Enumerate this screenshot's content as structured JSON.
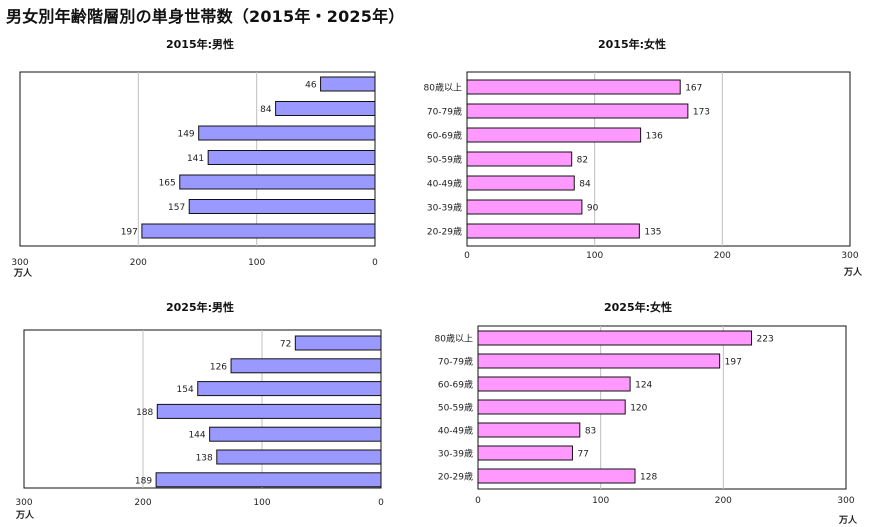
{
  "page_title": "男女別年齢階層別の単身世帯数（2015年・2025年）",
  "unit": "万人",
  "colors": {
    "male_bar": "#9999ff",
    "female_bar": "#ff99ff",
    "bar_stroke": "#111111",
    "grid": "#c0c0c0",
    "frame": "#111111"
  },
  "chart_data": [
    {
      "type": "bar",
      "orientation": "horizontal",
      "direction": "right-to-left",
      "title": "2015年:男性",
      "categories": [
        "80歳以上",
        "70-79歳",
        "60-69歳",
        "50-59歳",
        "40-49歳",
        "30-39歳",
        "20-29歳"
      ],
      "values": [
        46,
        84,
        149,
        141,
        165,
        157,
        197
      ],
      "xlim": [
        0,
        300
      ],
      "xticks": [
        "300",
        "200",
        "100",
        "0"
      ],
      "xlabel": "万人",
      "category_labels_shown": false
    },
    {
      "type": "bar",
      "orientation": "horizontal",
      "direction": "left-to-right",
      "title": "2015年:女性",
      "categories": [
        "80歳以上",
        "70-79歳",
        "60-69歳",
        "50-59歳",
        "40-49歳",
        "30-39歳",
        "20-29歳"
      ],
      "values": [
        167,
        173,
        136,
        82,
        84,
        90,
        135
      ],
      "xlim": [
        0,
        300
      ],
      "xticks": [
        "0",
        "100",
        "200",
        "300"
      ],
      "xlabel": "万人",
      "category_labels_shown": true
    },
    {
      "type": "bar",
      "orientation": "horizontal",
      "direction": "right-to-left",
      "title": "2025年:男性",
      "categories": [
        "80歳以上",
        "70-79歳",
        "60-69歳",
        "50-59歳",
        "40-49歳",
        "30-39歳",
        "20-29歳"
      ],
      "values": [
        72,
        126,
        154,
        188,
        144,
        138,
        189
      ],
      "xlim": [
        0,
        300
      ],
      "xticks": [
        "300",
        "200",
        "100",
        "0"
      ],
      "xlabel": "万人",
      "category_labels_shown": false
    },
    {
      "type": "bar",
      "orientation": "horizontal",
      "direction": "left-to-right",
      "title": "2025年:女性",
      "categories": [
        "80歳以上",
        "70-79歳",
        "60-69歳",
        "50-59歳",
        "40-49歳",
        "30-39歳",
        "20-29歳"
      ],
      "values": [
        223,
        197,
        124,
        120,
        83,
        77,
        128
      ],
      "xlim": [
        0,
        300
      ],
      "xticks": [
        "0",
        "100",
        "200",
        "300"
      ],
      "xlabel": "万人",
      "category_labels_shown": true
    }
  ]
}
